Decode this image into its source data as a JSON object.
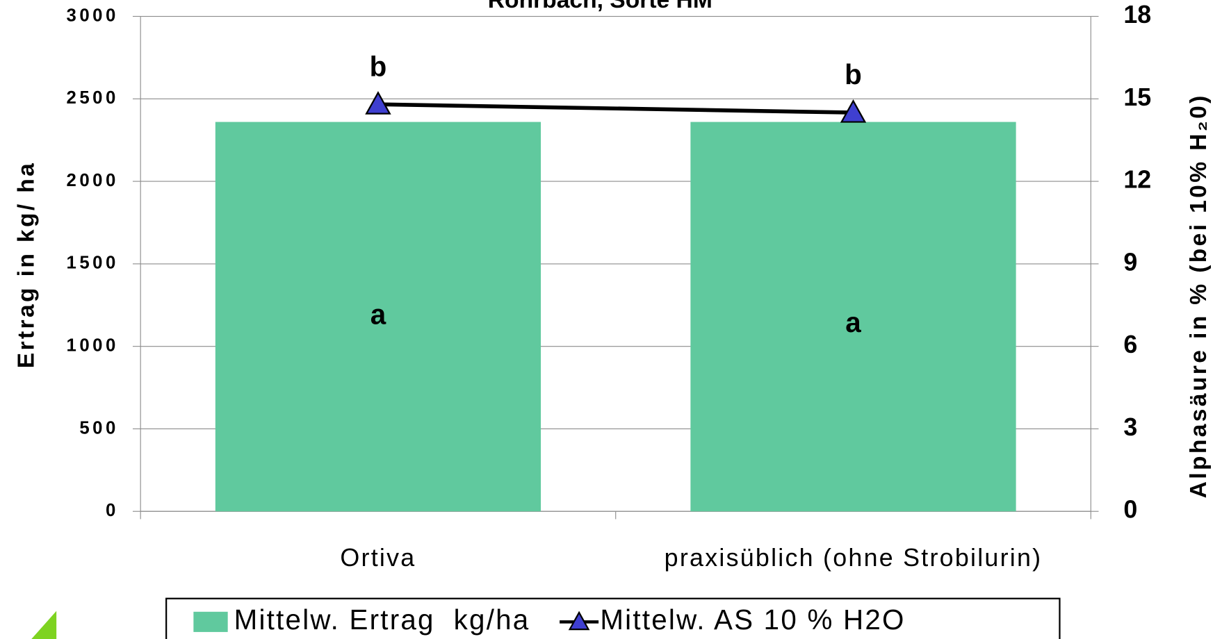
{
  "chart_data": {
    "type": "bar",
    "title": "Rohrbach, Sorte HM",
    "categories": [
      "Ortiva",
      "praxisüblich (ohne Strobilurin)"
    ],
    "series": [
      {
        "name": "Mittelw. Ertrag  kg/ha",
        "type": "bar",
        "color": "#60c99e",
        "values": [
          2360,
          2360
        ],
        "labels": [
          "a",
          "a"
        ]
      },
      {
        "name": "Mittelw. AS 10 % H2O",
        "type": "line",
        "axis": "y2",
        "color": "#000000",
        "marker_color": "#3f3fd0",
        "values": [
          14.8,
          14.5
        ],
        "labels": [
          "b",
          "b"
        ]
      }
    ],
    "ylabel": "Ertrag in kg/ ha",
    "y2label": "Alphasäure in %   (bei 10% H₂0)",
    "ylim": [
      0,
      3000
    ],
    "yticks": [
      0,
      500,
      1000,
      1500,
      2000,
      2500,
      3000
    ],
    "y2lim": [
      0,
      18
    ],
    "y2ticks": [
      0,
      3,
      6,
      9,
      12,
      15,
      18
    ],
    "grid": true,
    "legend": "bottom"
  }
}
